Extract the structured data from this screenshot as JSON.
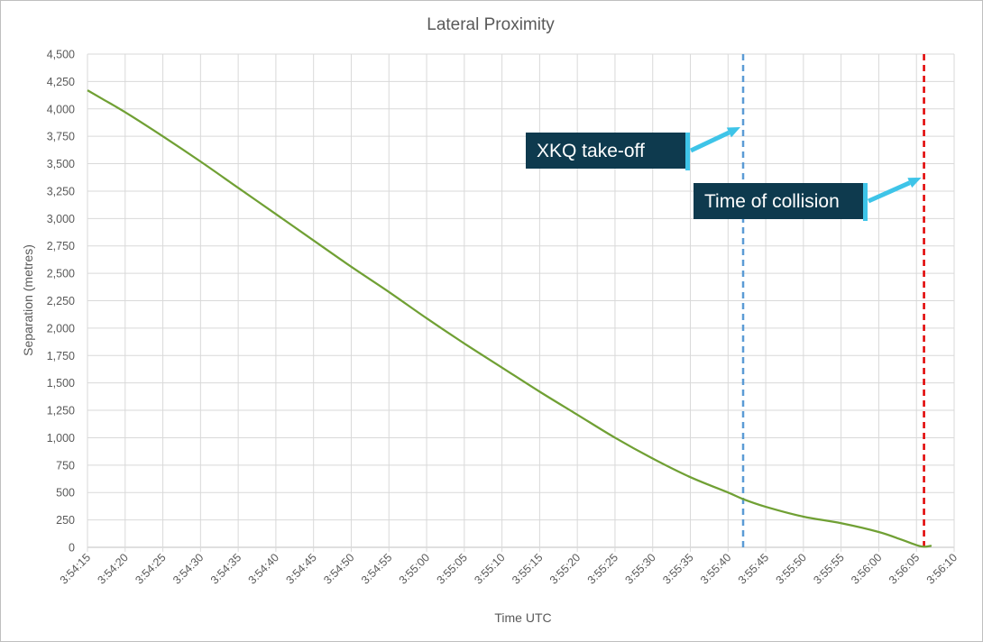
{
  "chart_data": {
    "type": "line",
    "title": "Lateral Proximity",
    "xlabel": "Time UTC",
    "ylabel": "Separation (metres)",
    "ylim": [
      0,
      4500
    ],
    "y_ticks": [
      "0",
      "250",
      "500",
      "750",
      "1,000",
      "1,250",
      "1,500",
      "1,750",
      "2,000",
      "2,250",
      "2,500",
      "2,750",
      "3,000",
      "3,250",
      "3,500",
      "3,750",
      "4,000",
      "4,250",
      "4,500"
    ],
    "x_ticks": [
      "3:54:15",
      "3:54:20",
      "3:54:25",
      "3:54:30",
      "3:54:35",
      "3:54:40",
      "3:54:45",
      "3:54:50",
      "3:54:55",
      "3:55:00",
      "3:55:05",
      "3:55:10",
      "3:55:15",
      "3:55:20",
      "3:55:25",
      "3:55:30",
      "3:55:35",
      "3:55:40",
      "3:55:45",
      "3:55:50",
      "3:55:55",
      "3:56:00",
      "3:56:05",
      "3:56:10"
    ],
    "xlim": [
      "3:54:15",
      "3:56:10"
    ],
    "grid": true,
    "series": [
      {
        "color": "#70a034",
        "x": [
          "3:54:15",
          "3:54:17",
          "3:54:20",
          "3:54:25",
          "3:54:30",
          "3:54:35",
          "3:54:40",
          "3:54:45",
          "3:54:50",
          "3:54:55",
          "3:55:00",
          "3:55:05",
          "3:55:10",
          "3:55:15",
          "3:55:20",
          "3:55:25",
          "3:55:30",
          "3:55:35",
          "3:55:40",
          "3:55:42",
          "3:55:45",
          "3:55:50",
          "3:55:55",
          "3:56:00",
          "3:56:03",
          "3:56:05",
          "3:56:06",
          "3:56:07"
        ],
        "y": [
          4170,
          4090,
          3970,
          3750,
          3520,
          3280,
          3040,
          2800,
          2560,
          2330,
          2090,
          1860,
          1640,
          1420,
          1210,
          1000,
          810,
          640,
          500,
          440,
          370,
          280,
          220,
          140,
          70,
          20,
          5,
          15
        ]
      }
    ],
    "reference_lines": [
      {
        "x": "3:55:42",
        "color": "#5b9bd5",
        "style": "dashed"
      },
      {
        "x": "3:56:06",
        "color": "#e00000",
        "style": "dashed"
      }
    ],
    "annotations": [
      {
        "text": "XKQ take-off",
        "points_to": "3:55:42",
        "box_color": "#0e3a4e",
        "arrow_color": "#3ec4e8"
      },
      {
        "text": "Time of collision",
        "points_to": "3:56:06",
        "box_color": "#0e3a4e",
        "arrow_color": "#3ec4e8"
      }
    ]
  }
}
